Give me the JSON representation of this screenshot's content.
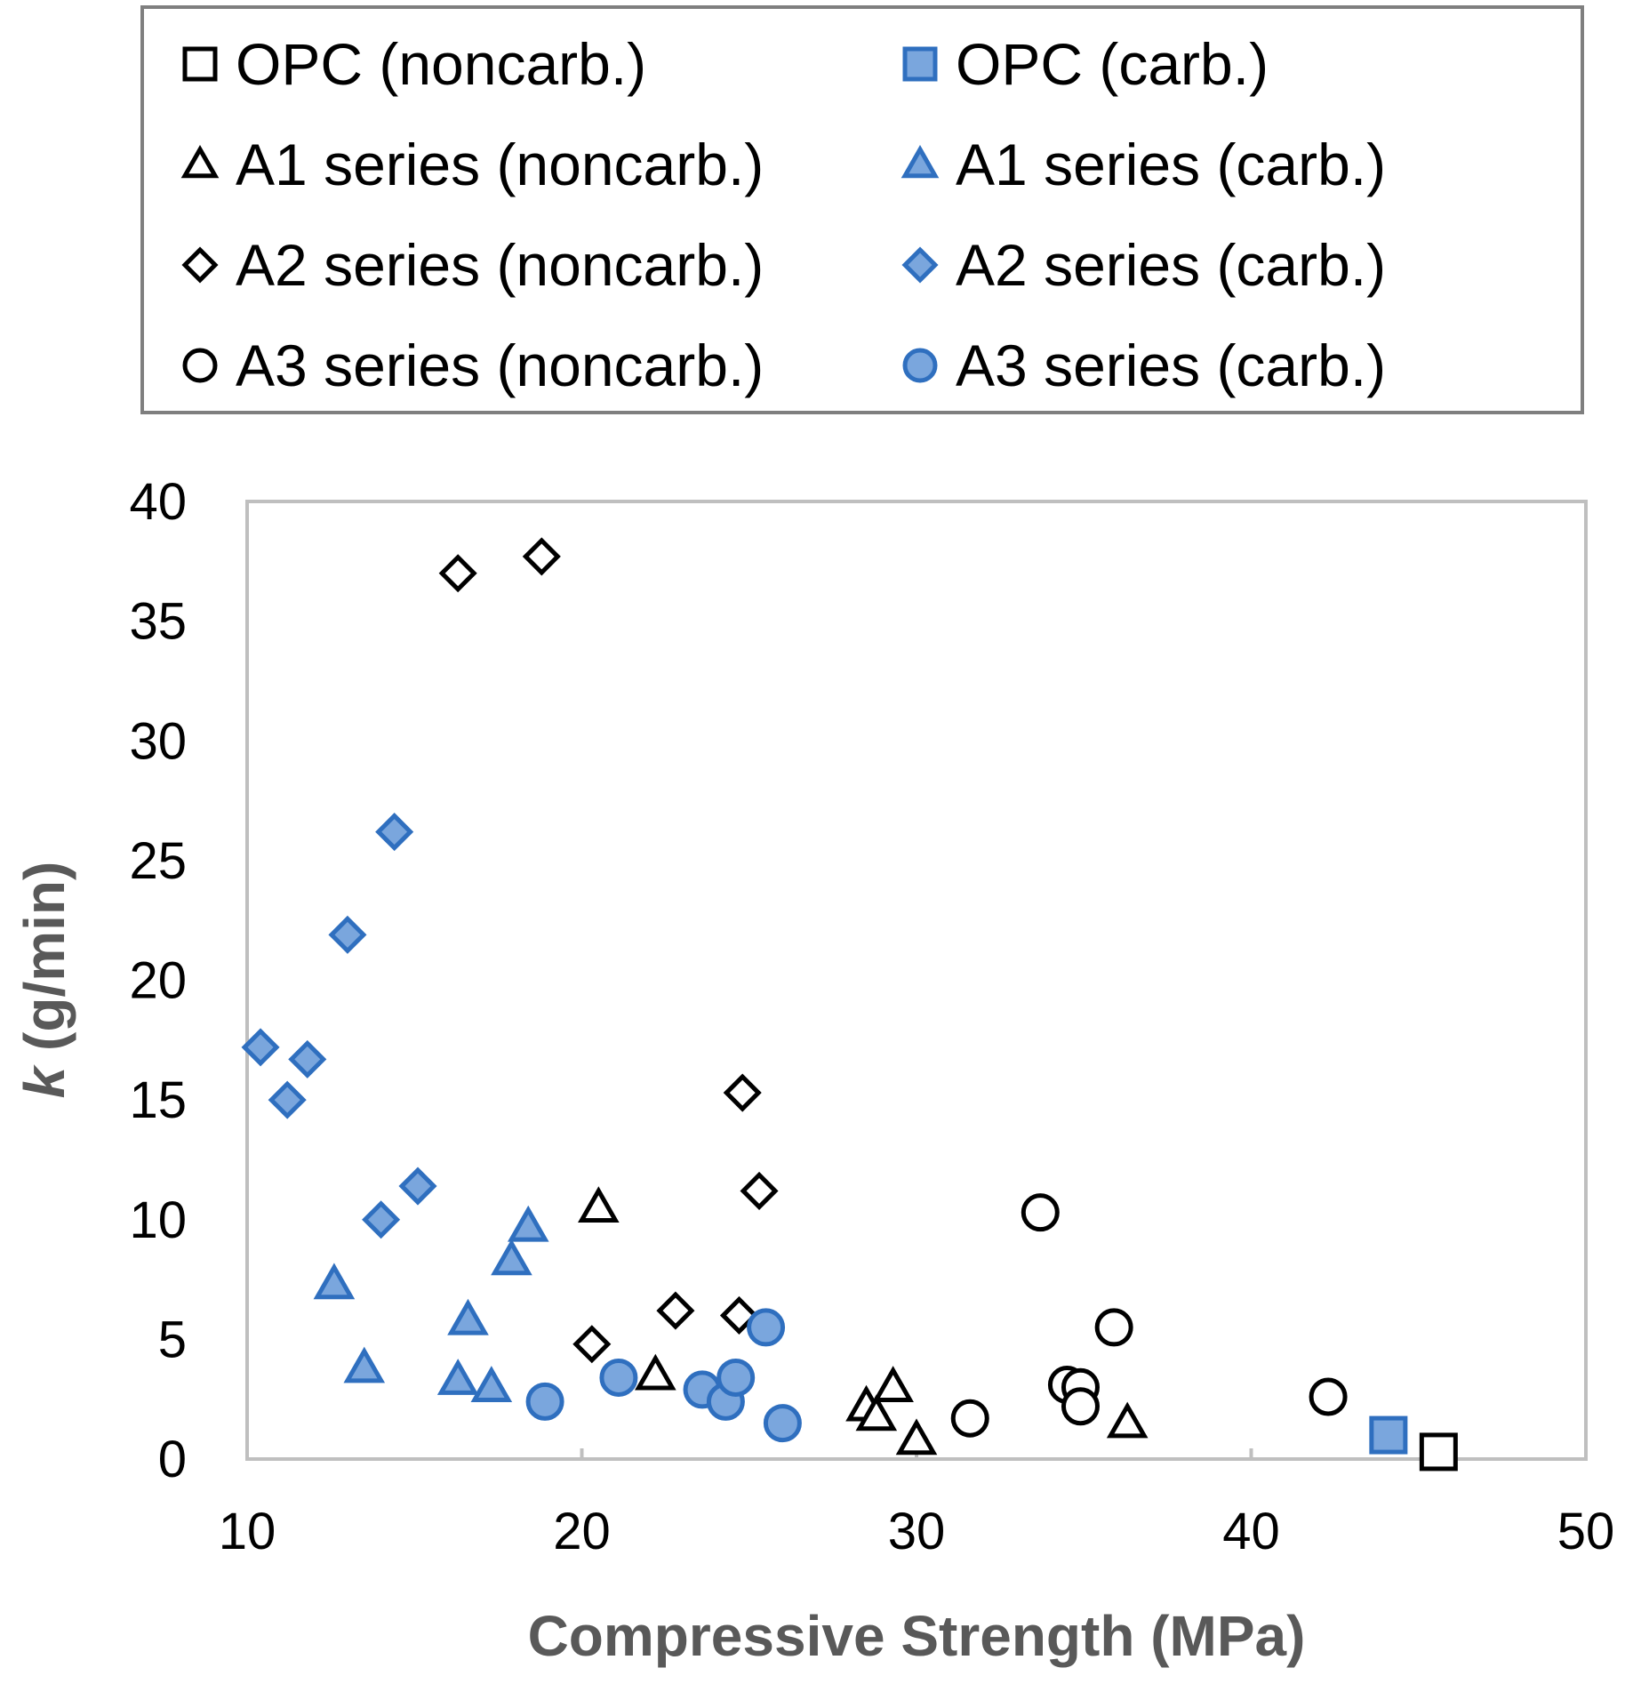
{
  "chart_data": {
    "type": "scatter",
    "title": "",
    "xlabel": "Compressive Strength (MPa)",
    "ylabel_italic": "k",
    "ylabel_rest": " (g/min)",
    "xlim": [
      10,
      50
    ],
    "ylim": [
      0,
      40
    ],
    "xticks": [
      10,
      20,
      30,
      40,
      50
    ],
    "yticks": [
      0,
      5,
      10,
      15,
      20,
      25,
      30,
      35,
      40
    ],
    "grid": false,
    "legend_position": "top",
    "colors": {
      "black": "#000000",
      "blue_fill": "#7AA6DD",
      "blue_edge": "#2F6FBF",
      "axis_border": "#BFBFBF"
    },
    "series": [
      {
        "name": "OPC (noncarb.)",
        "marker": "square",
        "filled": false,
        "points": [
          [
            45.6,
            0.3
          ]
        ]
      },
      {
        "name": "OPC (carb.)",
        "marker": "square",
        "filled": true,
        "points": [
          [
            44.1,
            1.0
          ]
        ]
      },
      {
        "name": "A1 series (noncarb.)",
        "marker": "triangle",
        "filled": false,
        "points": [
          [
            20.5,
            10.5
          ],
          [
            22.2,
            3.5
          ],
          [
            28.5,
            2.2
          ],
          [
            28.8,
            1.8
          ],
          [
            29.3,
            3.0
          ],
          [
            30.0,
            0.8
          ],
          [
            36.3,
            1.5
          ]
        ]
      },
      {
        "name": "A1 series (carb.)",
        "marker": "triangle",
        "filled": true,
        "points": [
          [
            12.6,
            7.3
          ],
          [
            13.5,
            3.8
          ],
          [
            16.3,
            3.3
          ],
          [
            16.6,
            5.8
          ],
          [
            17.3,
            3.0
          ],
          [
            17.9,
            8.3
          ],
          [
            18.4,
            9.7
          ]
        ]
      },
      {
        "name": "A2 series (noncarb.)",
        "marker": "diamond",
        "filled": false,
        "points": [
          [
            16.3,
            37.0
          ],
          [
            18.8,
            37.7
          ],
          [
            20.3,
            4.8
          ],
          [
            22.8,
            6.2
          ],
          [
            24.7,
            6.0
          ],
          [
            24.8,
            15.3
          ],
          [
            25.3,
            11.2
          ]
        ]
      },
      {
        "name": "A2 series (carb.)",
        "marker": "diamond",
        "filled": true,
        "points": [
          [
            10.4,
            17.2
          ],
          [
            11.2,
            15.0
          ],
          [
            11.8,
            16.7
          ],
          [
            13.0,
            21.9
          ],
          [
            14.0,
            10.0
          ],
          [
            14.4,
            26.2
          ],
          [
            15.1,
            11.4
          ]
        ]
      },
      {
        "name": "A3 series (noncarb.)",
        "marker": "circle",
        "filled": false,
        "points": [
          [
            31.6,
            1.7
          ],
          [
            33.7,
            10.3
          ],
          [
            34.5,
            3.1
          ],
          [
            34.9,
            3.0
          ],
          [
            34.9,
            2.2
          ],
          [
            35.9,
            5.5
          ],
          [
            42.3,
            2.6
          ]
        ]
      },
      {
        "name": "A3 series (carb.)",
        "marker": "circle",
        "filled": true,
        "points": [
          [
            18.9,
            2.4
          ],
          [
            21.1,
            3.4
          ],
          [
            23.6,
            2.9
          ],
          [
            24.3,
            2.4
          ],
          [
            24.6,
            3.4
          ],
          [
            25.5,
            5.5
          ],
          [
            26.0,
            1.5
          ]
        ]
      }
    ]
  }
}
